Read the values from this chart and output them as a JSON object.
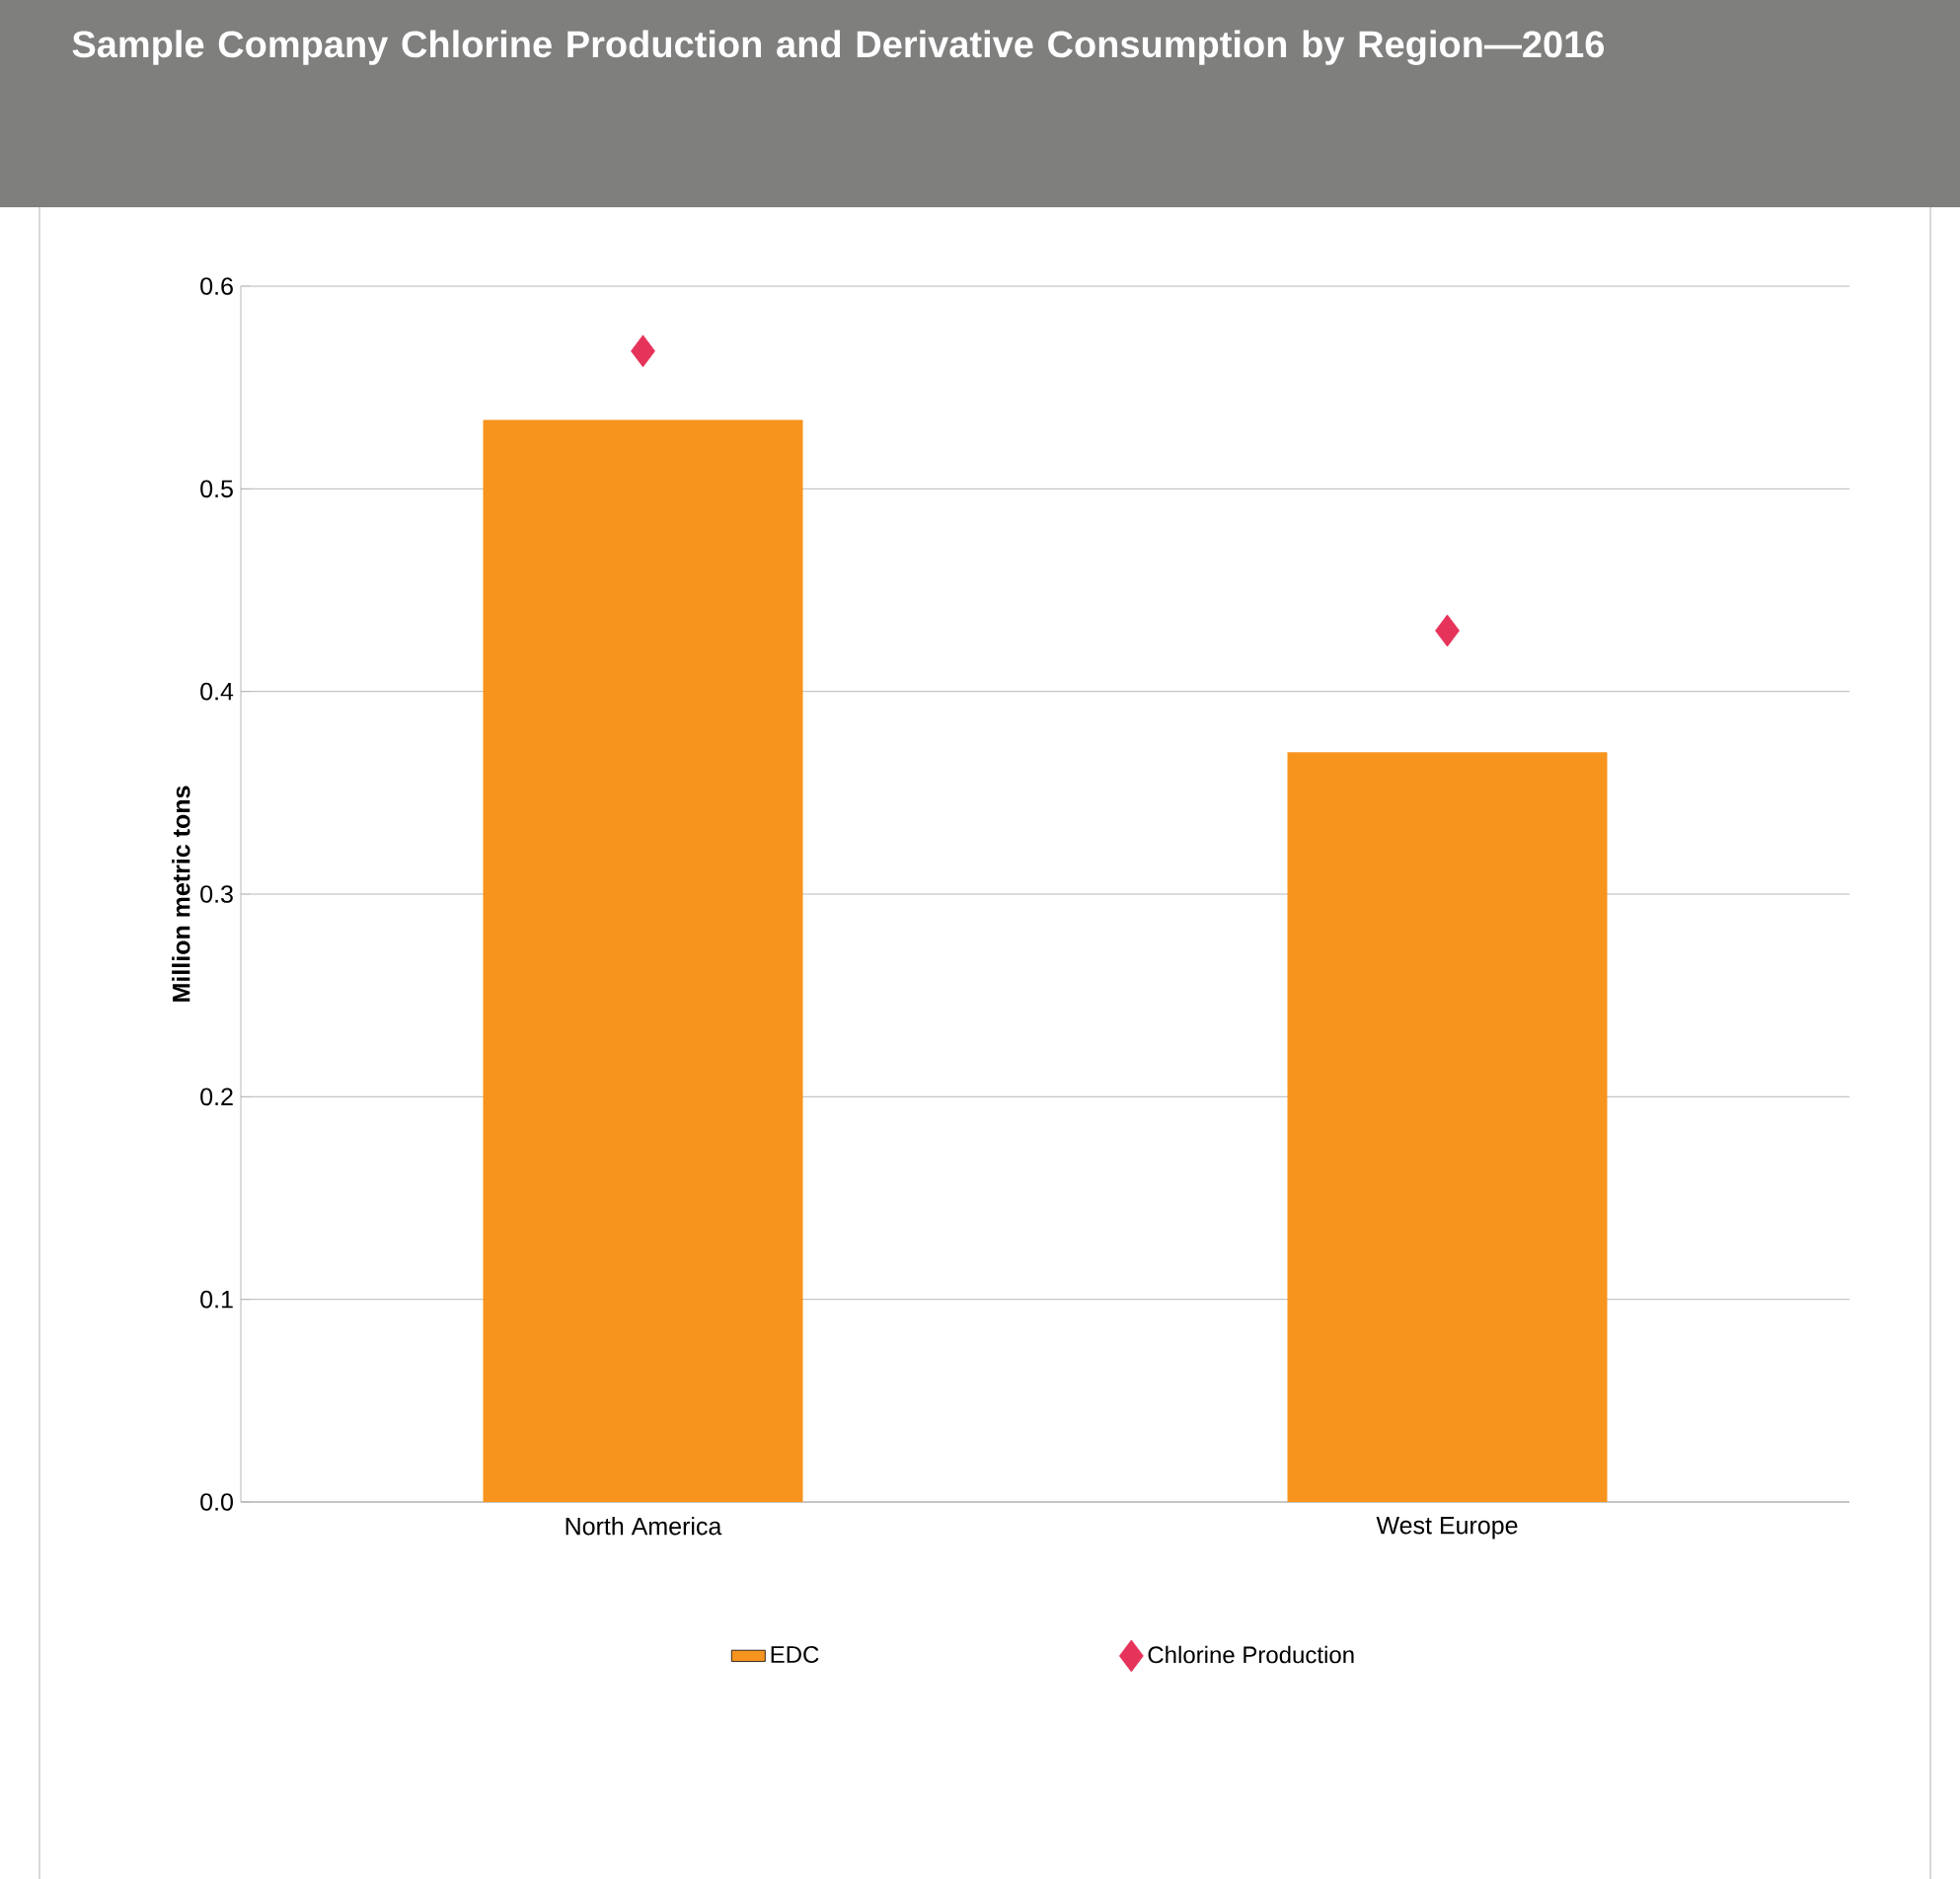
{
  "chart_data": {
    "type": "bar",
    "title": "Sample Company Chlorine Production and Derivative Consumption by Region—2016",
    "ylabel": "Million metric tons",
    "categories": [
      "North America",
      "West Europe"
    ],
    "series": [
      {
        "name": "EDC",
        "color": "#f7941d",
        "values": [
          0.534,
          0.37
        ]
      },
      {
        "name": "Chlorine Production",
        "type": "scatter",
        "marker": "diamond",
        "color": "#e5335a",
        "values": [
          0.568,
          0.43
        ]
      }
    ],
    "ylim": [
      0,
      0.6
    ],
    "yticks": [
      {
        "value": 0,
        "label": "0.0"
      },
      0.1,
      0.2,
      0.3,
      0.4,
      0.5,
      0.6
    ],
    "grid": "y",
    "legend": "bottom"
  }
}
